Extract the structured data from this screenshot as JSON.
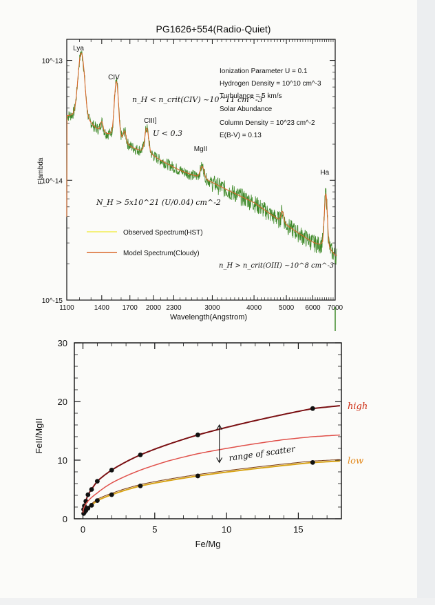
{
  "chart_data": [
    {
      "type": "line",
      "title": "PG1626+554(Radio-Quiet)",
      "xlabel": "Wavelength(Angstrom)",
      "ylabel": "Flambda",
      "x_scale": "log",
      "y_scale": "log",
      "xlim": [
        1100,
        7000
      ],
      "ylim": [
        1e-15,
        1.5e-13
      ],
      "x_ticks": [
        "1100",
        "1400",
        "1700",
        "2000",
        "2300",
        "3000",
        "4000",
        "5000",
        "6000",
        "7000"
      ],
      "x_tick_values": [
        1100,
        1400,
        1700,
        2000,
        2300,
        3000,
        4000,
        5000,
        6000,
        7000
      ],
      "y_ticks": [
        "10^-13",
        "10^-14",
        "10^-15"
      ],
      "y_tick_values": [
        1e-13,
        1e-14,
        1e-15
      ],
      "line_labels": [
        {
          "text": "Lya",
          "x": 1216
        },
        {
          "text": "CIV",
          "x": 1549
        },
        {
          "text": "CIII]",
          "x": 1909
        },
        {
          "text": "MgII",
          "x": 2798
        },
        {
          "text": "Ha",
          "x": 6563
        }
      ],
      "parameters": [
        "Ionization Parameter U = 0.1",
        "Hydrogen Density = 10^10 cm^-3",
        "Turbulance = 5 km/s",
        "Solar Abundance",
        "Column Density = 10^23 cm^-2",
        "E(B-V) = 0.13"
      ],
      "handwritten_notes": {
        "civ": "n_H < n_crit(CIV) ~10^11 cm^-3",
        "ciii": "U < 0.3",
        "column": "N_H > 5x10^21 (U/0.04) cm^-2",
        "halpha": "n_H > n_crit(OIII) ~10^8 cm^-3"
      },
      "legend": "left-middle",
      "series": [
        {
          "name": "Observed Spectrum(HST)",
          "color": "#3f8a2a"
        },
        {
          "name": "Model Spectrum(Cloudy)",
          "color": "#d9682a"
        }
      ],
      "continuum": [
        [
          1100,
          3.2e-14
        ],
        [
          1300,
          2.6e-14
        ],
        [
          1600,
          1.95e-14
        ],
        [
          2000,
          1.55e-14
        ],
        [
          2400,
          1.2e-14
        ],
        [
          3000,
          9.5e-15
        ],
        [
          4000,
          6.5e-15
        ],
        [
          5000,
          4.2e-15
        ],
        [
          6000,
          3e-15
        ],
        [
          7000,
          2.3e-15
        ]
      ],
      "emission_lines": [
        {
          "x": 1216,
          "peak": 1.15e-13,
          "width": 22
        },
        {
          "x": 1400,
          "peak": 2.9e-14,
          "width": 12
        },
        {
          "x": 1549,
          "peak": 6.6e-14,
          "width": 18
        },
        {
          "x": 1640,
          "peak": 2.4e-14,
          "width": 14
        },
        {
          "x": 1909,
          "peak": 2.7e-14,
          "width": 22
        },
        {
          "x": 2798,
          "peak": 1.3e-14,
          "width": 35
        },
        {
          "x": 4861,
          "peak": 5.5e-15,
          "width": 40
        },
        {
          "x": 6563,
          "peak": 7.7e-15,
          "width": 55
        }
      ]
    },
    {
      "type": "line",
      "xlabel": "Fe/Mg",
      "ylabel": "FeII/MgII",
      "xlim": [
        -0.6,
        18
      ],
      "ylim": [
        0,
        30
      ],
      "x_ticks": [
        0,
        5,
        10,
        15
      ],
      "y_ticks": [
        0,
        10,
        20,
        30
      ],
      "series": [
        {
          "name": "high",
          "color": "#7a0f12",
          "label_color": "#cc2a10",
          "points": [
            [
              0.05,
              1.6
            ],
            [
              0.1,
              2.2
            ],
            [
              0.2,
              3.0
            ],
            [
              0.35,
              4.1
            ],
            [
              0.6,
              5.0
            ],
            [
              1,
              6.4
            ],
            [
              2,
              8.3
            ],
            [
              4,
              10.9
            ],
            [
              8,
              14.3
            ],
            [
              16,
              18.8
            ]
          ]
        },
        {
          "name": "low",
          "color": "#d8a316",
          "label_color": "#e38a1e",
          "points": [
            [
              0.05,
              0.9
            ],
            [
              0.1,
              1.1
            ],
            [
              0.2,
              1.4
            ],
            [
              0.35,
              1.8
            ],
            [
              0.6,
              2.3
            ],
            [
              1,
              3.1
            ],
            [
              2,
              4.1
            ],
            [
              4,
              5.6
            ],
            [
              8,
              7.3
            ],
            [
              16,
              9.6
            ]
          ]
        },
        {
          "name": "",
          "color": "#e0504a",
          "curve": [
            [
              0,
              1.0
            ],
            [
              1,
              4.4
            ],
            [
              2,
              6.1
            ],
            [
              4,
              8.3
            ],
            [
              6,
              9.9
            ],
            [
              8,
              11.1
            ],
            [
              10,
              12.0
            ],
            [
              12,
              12.8
            ],
            [
              14,
              13.5
            ],
            [
              16,
              14.0
            ],
            [
              18,
              14.3
            ]
          ]
        }
      ],
      "annotation": "range of scatter",
      "annotation_x": 9.5,
      "annotation_range": [
        9.6,
        16.0
      ]
    }
  ]
}
